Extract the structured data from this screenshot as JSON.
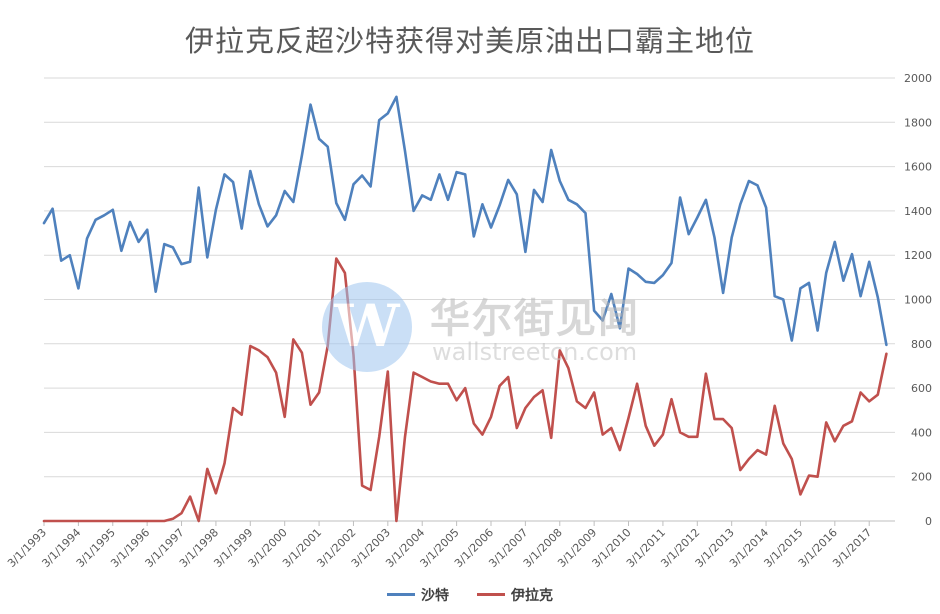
{
  "chart_data": {
    "type": "line",
    "title": "伊拉克反超沙特获得对美原油出口霸主地位",
    "y_axis": {
      "position": "right",
      "ylim": [
        0,
        2000
      ],
      "ticks": [
        0,
        200,
        400,
        600,
        800,
        1000,
        1200,
        1400,
        1600,
        1800,
        2000
      ]
    },
    "x_axis": {
      "tick_labels": [
        "3/1/1993",
        "3/1/1994",
        "3/1/1995",
        "3/1/1996",
        "3/1/1997",
        "3/1/1998",
        "3/1/1999",
        "3/1/2000",
        "3/1/2001",
        "3/1/2002",
        "3/1/2003",
        "3/1/2004",
        "3/1/2005",
        "3/1/2006",
        "3/1/2007",
        "3/1/2008",
        "3/1/2009",
        "3/1/2010",
        "3/1/2011",
        "3/1/2012",
        "3/1/2013",
        "3/1/2014",
        "3/1/2015",
        "3/1/2016",
        "3/1/2017"
      ],
      "range": [
        "1993-03",
        "2017-12"
      ],
      "label_rotation": "-45deg"
    },
    "grid": true,
    "legend_position": "bottom",
    "series": [
      {
        "name": "沙特",
        "color": "#4f81bd",
        "values": [
          1345,
          1410,
          1175,
          1200,
          1050,
          1275,
          1360,
          1380,
          1405,
          1220,
          1350,
          1260,
          1315,
          1035,
          1250,
          1235,
          1160,
          1170,
          1505,
          1190,
          1405,
          1565,
          1530,
          1320,
          1580,
          1430,
          1330,
          1380,
          1490,
          1440,
          1650,
          1880,
          1725,
          1690,
          1435,
          1360,
          1520,
          1560,
          1510,
          1810,
          1840,
          1915,
          1670,
          1400,
          1470,
          1450,
          1565,
          1450,
          1575,
          1565,
          1285,
          1430,
          1325,
          1425,
          1540,
          1475,
          1215,
          1495,
          1440,
          1675,
          1535,
          1450,
          1430,
          1390,
          950,
          905,
          1025,
          870,
          1140,
          1115,
          1080,
          1075,
          1110,
          1165,
          1460,
          1295,
          1370,
          1450,
          1280,
          1030,
          1280,
          1430,
          1535,
          1515,
          1415,
          1015,
          1000,
          815,
          1050,
          1075,
          860,
          1120,
          1260,
          1085,
          1205,
          1015,
          1170,
          1010,
          795
        ],
        "x_start": "1993-03",
        "x_step_months": 3
      },
      {
        "name": "伊拉克",
        "color": "#c0504d",
        "values": [
          0,
          0,
          0,
          0,
          0,
          0,
          0,
          0,
          0,
          0,
          0,
          0,
          0,
          0,
          0,
          10,
          35,
          110,
          0,
          235,
          125,
          260,
          510,
          480,
          790,
          770,
          740,
          670,
          470,
          820,
          760,
          525,
          580,
          790,
          1185,
          1120,
          750,
          160,
          140,
          380,
          675,
          0,
          380,
          670,
          650,
          630,
          620,
          620,
          545,
          600,
          440,
          390,
          470,
          610,
          650,
          420,
          510,
          560,
          590,
          375,
          770,
          690,
          540,
          510,
          580,
          390,
          420,
          320,
          465,
          620,
          430,
          340,
          390,
          550,
          400,
          380,
          380,
          665,
          460,
          460,
          420,
          230,
          280,
          320,
          300,
          520,
          350,
          280,
          120,
          205,
          200,
          445,
          360,
          430,
          450,
          580,
          540,
          570,
          755
        ],
        "x_start": "1993-03",
        "x_step_months": 3
      }
    ]
  },
  "watermark": {
    "chinese": "华尔街见闻",
    "english": "wallstreetcn.com",
    "logo_letter": "W"
  }
}
